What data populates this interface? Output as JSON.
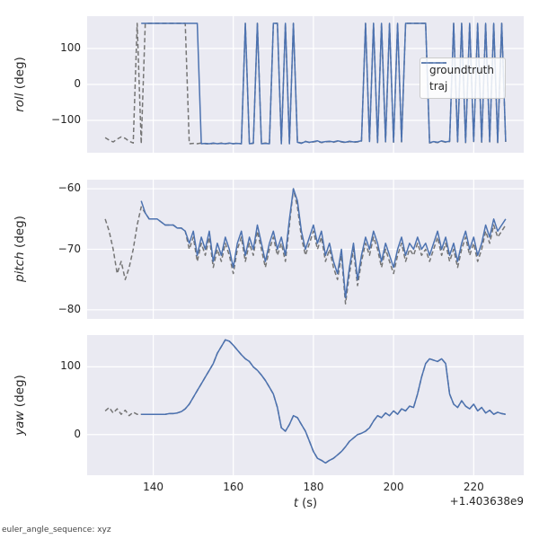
{
  "colors": {
    "axes_bg": "#eaeaf2",
    "grid": "#ffffff",
    "groundtruth": "#757575",
    "traj": "#4c72b0",
    "text": "#262626"
  },
  "legend": {
    "entries": [
      "groundtruth",
      "traj"
    ]
  },
  "xlabel_word": "t",
  "xlabel_unit": " (s)",
  "offset_text": "+1.403638e9",
  "footer": "euler_angle_sequence: xyz",
  "xticks": [
    140,
    160,
    180,
    200,
    220
  ],
  "chart_data": [
    {
      "type": "line",
      "ylabel_word": "roll",
      "ylabel_unit": " (deg)",
      "xlim": [
        123.5,
        232.5
      ],
      "ylim": [
        -190,
        190
      ],
      "yticks": [
        100,
        0,
        -100
      ],
      "series": [
        {
          "name": "groundtruth",
          "color": "#757575",
          "dash": "5 3",
          "t_start": 128,
          "t_step": 1,
          "v": [
            -148,
            -155,
            -160,
            -152,
            -146,
            -150,
            -158,
            -163,
            170,
            -165,
            170,
            170,
            170,
            170,
            170,
            170,
            170,
            170,
            170,
            170,
            170,
            -165,
            -164,
            -165,
            -163,
            -165,
            -166,
            -164,
            -165,
            -163,
            -165,
            -164,
            -165,
            -163,
            -165,
            170,
            -165,
            -164,
            170,
            -165,
            -163,
            -165,
            170,
            170,
            -165,
            170,
            -165,
            170,
            -160,
            -163,
            -158,
            -162,
            -160,
            -158,
            -162,
            -160,
            -159,
            -161,
            -158,
            -160,
            -162,
            -159,
            -161,
            -160,
            -158,
            170,
            -160,
            170,
            -162,
            170,
            -160,
            170,
            -161,
            170,
            -160,
            170,
            170,
            170,
            170,
            170,
            170,
            -163,
            -160,
            -162,
            -158,
            -161,
            -159,
            170,
            -160,
            170,
            -162,
            170,
            -159,
            170,
            -161,
            170,
            -160,
            170,
            -162,
            170,
            -160
          ]
        },
        {
          "name": "traj",
          "color": "#4c72b0",
          "dash": null,
          "t_start": 137,
          "t_step": 1,
          "v": [
            170,
            170,
            170,
            170,
            170,
            170,
            170,
            170,
            170,
            170,
            170,
            170,
            170,
            170,
            170,
            -165,
            -164,
            -165,
            -163,
            -165,
            -164,
            -165,
            -163,
            -165,
            -164,
            -165,
            170,
            -165,
            -163,
            170,
            -165,
            -164,
            -165,
            170,
            170,
            -165,
            170,
            -165,
            170,
            -161,
            -164,
            -159,
            -161,
            -159,
            -157,
            -161,
            -159,
            -158,
            -160,
            -157,
            -159,
            -161,
            -158,
            -160,
            -159,
            -157,
            170,
            -159,
            170,
            -161,
            170,
            -159,
            170,
            -160,
            170,
            -159,
            170,
            170,
            170,
            170,
            170,
            170,
            -162,
            -159,
            -161,
            -157,
            -160,
            -158,
            170,
            -159,
            170,
            -161,
            170,
            -158,
            170,
            -160,
            170,
            -159,
            170,
            -161,
            170,
            -159
          ]
        }
      ]
    },
    {
      "type": "line",
      "ylabel_word": "pitch",
      "ylabel_unit": " (deg)",
      "xlim": [
        123.5,
        232.5
      ],
      "ylim": [
        -81.5,
        -58.5
      ],
      "yticks": [
        -60,
        -70,
        -80
      ],
      "series": [
        {
          "name": "groundtruth",
          "color": "#757575",
          "dash": "5 3",
          "t_start": 128,
          "t_step": 1,
          "v": [
            -65,
            -67,
            -70,
            -74,
            -72,
            -75,
            -73,
            -70,
            -66,
            -63,
            -64,
            -65,
            -65,
            -65,
            -65.5,
            -66,
            -66,
            -66,
            -66.5,
            -66.5,
            -67,
            -70,
            -68,
            -72,
            -69,
            -71,
            -68,
            -73,
            -70,
            -72,
            -69,
            -71,
            -74,
            -70,
            -68,
            -72,
            -69,
            -71,
            -67,
            -70,
            -73,
            -70,
            -68,
            -71,
            -69,
            -72,
            -66,
            -60,
            -63,
            -68,
            -71,
            -69,
            -67,
            -70,
            -68,
            -72,
            -70,
            -73,
            -75,
            -71,
            -79,
            -74,
            -70,
            -76,
            -72,
            -69,
            -71,
            -68,
            -70,
            -73,
            -70,
            -72,
            -74,
            -71,
            -69,
            -72,
            -70,
            -71,
            -69,
            -71,
            -70,
            -72,
            -70,
            -68,
            -71,
            -69,
            -72,
            -70,
            -73,
            -70,
            -68,
            -71,
            -69,
            -72,
            -70,
            -67,
            -69,
            -66,
            -68,
            -67,
            -66
          ]
        },
        {
          "name": "traj",
          "color": "#4c72b0",
          "dash": null,
          "t_start": 137,
          "t_step": 1,
          "v": [
            -62,
            -64,
            -65,
            -65,
            -65,
            -65.5,
            -66,
            -66,
            -66,
            -66.5,
            -66.5,
            -67,
            -69,
            -67,
            -71,
            -68,
            -70,
            -67,
            -72,
            -69,
            -71,
            -68,
            -70,
            -73,
            -69,
            -67,
            -71,
            -68,
            -70,
            -66,
            -69,
            -72,
            -69,
            -67,
            -70,
            -68,
            -71,
            -65,
            -60,
            -62,
            -67,
            -70,
            -68,
            -66,
            -69,
            -67,
            -71,
            -69,
            -72,
            -74,
            -70,
            -78,
            -73,
            -69,
            -75,
            -71,
            -68,
            -70,
            -67,
            -69,
            -72,
            -69,
            -71,
            -73,
            -70,
            -68,
            -71,
            -69,
            -70,
            -68,
            -70,
            -69,
            -71,
            -69,
            -67,
            -70,
            -68,
            -71,
            -69,
            -72,
            -69,
            -67,
            -70,
            -68,
            -71,
            -69,
            -66,
            -68,
            -65,
            -67,
            -66,
            -65
          ]
        }
      ]
    },
    {
      "type": "line",
      "ylabel_word": "yaw",
      "ylabel_unit": " (deg)",
      "xlim": [
        123.5,
        232.5
      ],
      "ylim": [
        -60,
        147
      ],
      "yticks": [
        100,
        0
      ],
      "series": [
        {
          "name": "groundtruth",
          "color": "#757575",
          "dash": "5 3",
          "t_start": 128,
          "t_step": 1,
          "v": [
            35,
            40,
            32,
            38,
            30,
            36,
            28,
            33,
            30,
            30,
            30,
            30,
            30,
            30,
            30,
            30,
            31,
            31,
            32,
            34,
            38,
            45,
            55,
            65,
            75,
            85,
            95,
            105,
            120,
            130,
            140,
            138,
            132,
            125,
            118,
            112,
            108,
            100,
            95,
            88,
            80,
            70,
            60,
            40,
            10,
            5,
            15,
            28,
            25,
            15,
            5,
            -10,
            -25,
            -35,
            -38,
            -42,
            -38,
            -35,
            -30,
            -25,
            -18,
            -10,
            -5,
            0,
            2,
            5,
            10,
            20,
            28,
            25,
            32,
            28,
            35,
            30,
            38,
            35,
            42,
            40,
            60,
            85,
            105,
            112,
            110,
            108,
            112,
            105,
            60,
            45,
            40,
            50,
            42,
            38,
            45,
            35,
            40,
            32,
            36,
            30,
            33,
            31,
            30
          ]
        },
        {
          "name": "traj",
          "color": "#4c72b0",
          "dash": null,
          "t_start": 137,
          "t_step": 1,
          "v": [
            30,
            30,
            30,
            30,
            30,
            30,
            30,
            31,
            31,
            32,
            34,
            38,
            45,
            55,
            65,
            75,
            85,
            95,
            105,
            120,
            130,
            140,
            138,
            132,
            125,
            118,
            112,
            108,
            100,
            95,
            88,
            80,
            70,
            60,
            40,
            10,
            5,
            15,
            28,
            25,
            15,
            5,
            -10,
            -25,
            -35,
            -38,
            -42,
            -38,
            -35,
            -30,
            -25,
            -18,
            -10,
            -5,
            0,
            2,
            5,
            10,
            20,
            28,
            25,
            32,
            28,
            35,
            30,
            38,
            35,
            42,
            40,
            60,
            85,
            105,
            112,
            110,
            108,
            112,
            105,
            60,
            45,
            40,
            50,
            42,
            38,
            45,
            35,
            40,
            32,
            36,
            30,
            33,
            31,
            30
          ]
        }
      ]
    }
  ]
}
